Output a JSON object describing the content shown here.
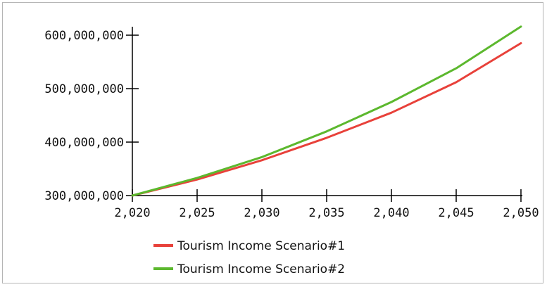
{
  "chart_data": {
    "type": "line",
    "title": "",
    "xlabel": "",
    "ylabel": "",
    "xlim": [
      2020,
      2050
    ],
    "ylim": [
      300000000,
      600000000
    ],
    "x_ticks": [
      2020,
      2025,
      2030,
      2035,
      2040,
      2045,
      2050
    ],
    "x_tick_labels": [
      "2,020",
      "2,025",
      "2,030",
      "2,035",
      "2,040",
      "2,045",
      "2,050"
    ],
    "y_ticks": [
      300000000,
      400000000,
      500000000,
      600000000
    ],
    "y_tick_labels": [
      "300,000,000",
      "400,000,000",
      "500,000,000",
      "600,000,000"
    ],
    "grid": false,
    "legend_position": "bottom",
    "x": [
      2020,
      2025,
      2030,
      2035,
      2040,
      2045,
      2050
    ],
    "series": [
      {
        "name": "Tourism Income Scenario#1",
        "color": "#e8413a",
        "values": [
          300000000,
          330000000,
          366000000,
          408000000,
          455000000,
          512000000,
          585000000
        ]
      },
      {
        "name": "Tourism Income Scenario#2",
        "color": "#5cb82e",
        "values": [
          300000000,
          333000000,
          372000000,
          420000000,
          475000000,
          538000000,
          616000000
        ]
      }
    ]
  }
}
